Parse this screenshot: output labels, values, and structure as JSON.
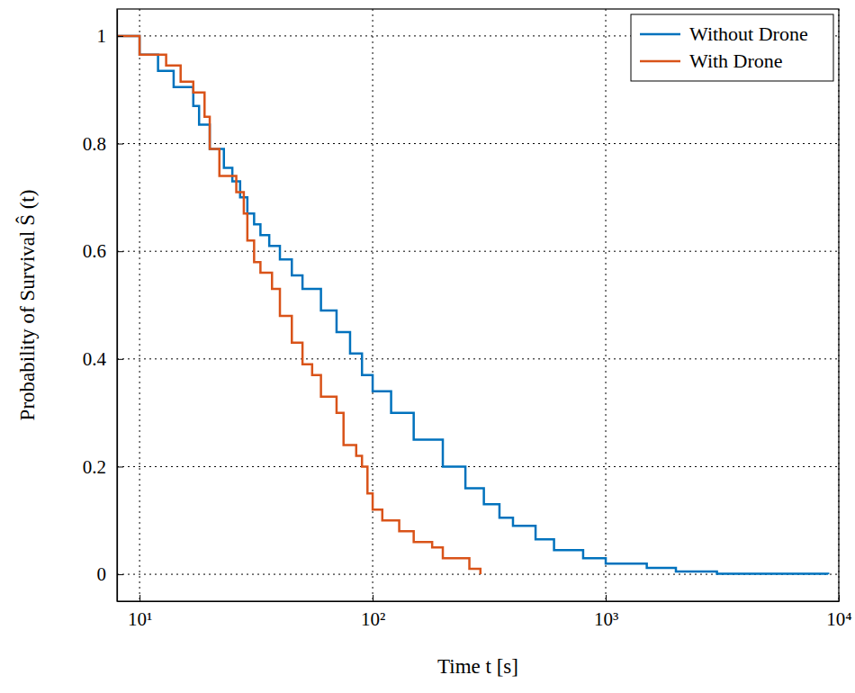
{
  "chart_data": {
    "type": "line",
    "x_label": "Time t [s]",
    "y_label": "Probability of Survival Ŝ (t)",
    "log": "x",
    "grid": true,
    "legend": "top-right",
    "line_style": "step",
    "xlim": [
      8,
      10000
    ],
    "ylim": [
      -0.05,
      1.05
    ],
    "xticks": [
      {
        "value": 10,
        "label": "10¹"
      },
      {
        "value": 100,
        "label": "10²"
      },
      {
        "value": 1000,
        "label": "10³"
      },
      {
        "value": 10000,
        "label": "10⁴"
      }
    ],
    "yticks": [
      0,
      0.2,
      0.4,
      0.6,
      0.8,
      1
    ],
    "series": [
      {
        "name": "Without Drone",
        "color": "#0072BD",
        "x": [
          8,
          10,
          12,
          14,
          17,
          18,
          20,
          23,
          25,
          27,
          29,
          31,
          33,
          36,
          40,
          45,
          50,
          60,
          70,
          80,
          90,
          100,
          120,
          150,
          200,
          250,
          300,
          350,
          400,
          500,
          600,
          800,
          1000,
          1500,
          2000,
          3000,
          9000
        ],
        "values": [
          1,
          0.965,
          0.935,
          0.905,
          0.87,
          0.835,
          0.79,
          0.755,
          0.73,
          0.7,
          0.67,
          0.65,
          0.63,
          0.61,
          0.585,
          0.555,
          0.53,
          0.49,
          0.45,
          0.41,
          0.37,
          0.34,
          0.3,
          0.25,
          0.2,
          0.16,
          0.13,
          0.105,
          0.09,
          0.065,
          0.045,
          0.03,
          0.02,
          0.012,
          0.005,
          0.001,
          0
        ]
      },
      {
        "name": "With Drone",
        "color": "#D95319",
        "x": [
          8,
          10,
          13,
          15,
          17,
          19,
          20,
          22,
          26,
          28,
          29,
          31,
          33,
          37,
          40,
          45,
          50,
          55,
          60,
          70,
          75,
          85,
          90,
          95,
          100,
          110,
          130,
          150,
          180,
          200,
          260,
          290
        ],
        "values": [
          1,
          0.965,
          0.945,
          0.915,
          0.895,
          0.85,
          0.79,
          0.74,
          0.71,
          0.67,
          0.62,
          0.58,
          0.56,
          0.53,
          0.48,
          0.43,
          0.39,
          0.37,
          0.33,
          0.3,
          0.24,
          0.22,
          0.2,
          0.15,
          0.12,
          0.1,
          0.08,
          0.06,
          0.05,
          0.03,
          0.01,
          0
        ]
      }
    ]
  }
}
